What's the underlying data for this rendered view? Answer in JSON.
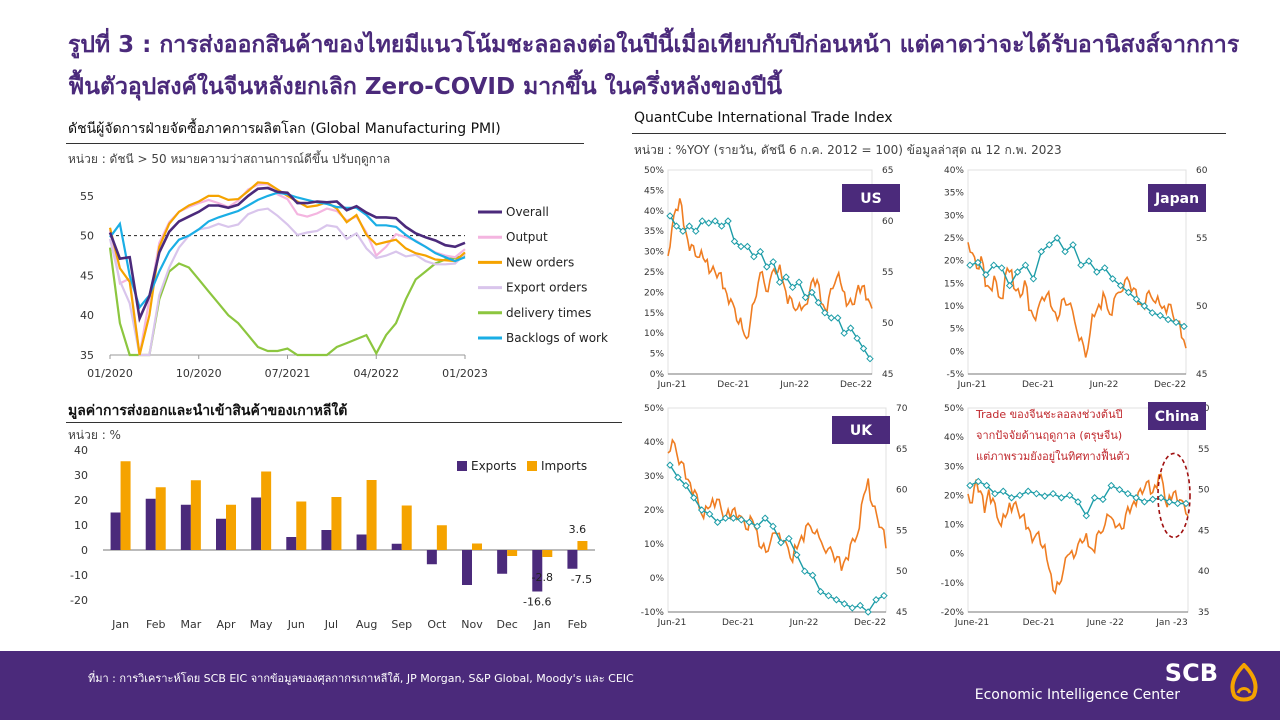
{
  "title": "รูปที่ 3 : การส่งออกสินค้าของไทยมีแนวโน้มชะลอลงต่อในปีนี้เมื่อเทียบกับปีก่อนหน้า แต่คาดว่าจะได้รับอานิสงส์จากการฟื้นตัวอุปสงค์ในจีนหลังยกเลิก Zero-COVID มากขึ้น ในครึ่งหลังของปีนี้",
  "footer": {
    "source": "ที่มา : การวิเคราะห์โดย SCB EIC จากข้อมูลของศุลกากรเกาหลีใต้, JP Morgan, S&P Global, Moody's และ CEIC",
    "brand": "SCB",
    "brand_sub": "Economic Intelligence Center"
  },
  "chart_data": [
    {
      "type": "line",
      "title": "ดัชนีผู้จัดการฝ่ายจัดซื้อภาคการผลิตโลก (Global Manufacturing PMI)",
      "subtitle": "หน่วย : ดัชนี > 50 หมายความว่าสถานการณ์ดีขึ้น ปรับฤดูกาล",
      "x_ticks": [
        "01/2020",
        "10/2020",
        "07/2021",
        "04/2022",
        "01/2023"
      ],
      "y_ticks": [
        35,
        40,
        45,
        50,
        55
      ],
      "ylim": [
        35,
        57
      ],
      "reference_line": 50,
      "x": [
        "01/2020",
        "02/2020",
        "03/2020",
        "04/2020",
        "05/2020",
        "06/2020",
        "07/2020",
        "08/2020",
        "09/2020",
        "10/2020",
        "11/2020",
        "12/2020",
        "01/2021",
        "02/2021",
        "03/2021",
        "04/2021",
        "05/2021",
        "06/2021",
        "07/2021",
        "08/2021",
        "09/2021",
        "10/2021",
        "11/2021",
        "12/2021",
        "01/2022",
        "02/2022",
        "03/2022",
        "04/2022",
        "05/2022",
        "06/2022",
        "07/2022",
        "08/2022",
        "09/2022",
        "10/2022",
        "11/2022",
        "12/2022",
        "01/2023"
      ],
      "series": [
        {
          "name": "Overall",
          "color": "#4b2a7b",
          "values": [
            50.4,
            47.1,
            47.3,
            39.6,
            42.4,
            47.9,
            50.5,
            51.8,
            52.4,
            53.0,
            53.8,
            53.8,
            53.5,
            53.9,
            55.0,
            55.9,
            56.0,
            55.5,
            55.4,
            54.1,
            54.1,
            54.3,
            54.2,
            54.3,
            53.2,
            53.7,
            52.9,
            52.3,
            52.3,
            52.2,
            51.1,
            50.3,
            49.8,
            49.4,
            48.8,
            48.6,
            49.1
          ]
        },
        {
          "name": "Output",
          "color": "#f4b5e0",
          "values": [
            50.7,
            44.0,
            44.6,
            34.8,
            42.0,
            49.1,
            51.7,
            53.0,
            53.6,
            54.1,
            54.5,
            54.1,
            53.6,
            54.4,
            55.8,
            56.4,
            56.5,
            55.2,
            54.6,
            52.7,
            52.4,
            52.8,
            53.4,
            53.1,
            51.9,
            52.4,
            50.4,
            47.5,
            48.6,
            50.2,
            49.8,
            49.4,
            48.6,
            47.9,
            47.5,
            47.3,
            48.3
          ]
        },
        {
          "name": "New orders",
          "color": "#f5a300",
          "values": [
            51.0,
            45.9,
            44.2,
            33.0,
            40.0,
            48.6,
            51.5,
            53.0,
            53.8,
            54.3,
            55.0,
            55.0,
            54.5,
            54.6,
            55.6,
            56.7,
            56.6,
            55.8,
            55.0,
            54.3,
            53.6,
            53.8,
            54.2,
            53.4,
            51.7,
            52.6,
            50.1,
            48.9,
            49.2,
            49.5,
            48.4,
            47.8,
            47.5,
            47.0,
            46.9,
            46.8,
            47.9
          ]
        },
        {
          "name": "Export orders",
          "color": "#d9c5ec",
          "values": [
            49.6,
            44.3,
            41.5,
            28.0,
            34.0,
            42.5,
            46.0,
            48.5,
            50.0,
            50.8,
            51.0,
            51.5,
            51.1,
            51.4,
            52.7,
            53.2,
            53.4,
            52.5,
            51.4,
            50.1,
            50.4,
            50.6,
            51.3,
            51.1,
            49.6,
            50.3,
            48.4,
            47.2,
            47.5,
            48.0,
            47.4,
            47.6,
            46.8,
            46.4,
            46.4,
            46.5,
            47.7
          ]
        },
        {
          "name": "delivery times",
          "color": "#8cc63f",
          "values": [
            48.5,
            39.0,
            32.0,
            25.0,
            35.0,
            42.0,
            45.5,
            46.5,
            46.0,
            44.5,
            43.0,
            41.5,
            40.0,
            39.0,
            37.5,
            36.0,
            35.5,
            35.5,
            35.8,
            34.5,
            34.2,
            34.3,
            34.5,
            36.0,
            36.5,
            37.0,
            37.5,
            35.2,
            37.5,
            39.0,
            42.0,
            44.5,
            45.5,
            46.5,
            47.0,
            47.2,
            47.5
          ]
        },
        {
          "name": "Backlogs of work",
          "color": "#1aaee5",
          "values": [
            49.8,
            51.5,
            45.0,
            41.0,
            42.5,
            45.5,
            48.0,
            49.5,
            50.0,
            50.8,
            51.8,
            52.3,
            52.7,
            53.1,
            53.8,
            54.5,
            55.0,
            55.4,
            55.2,
            54.8,
            54.5,
            54.2,
            54.0,
            53.6,
            53.5,
            53.5,
            52.6,
            51.3,
            51.3,
            51.1,
            50.1,
            49.3,
            48.6,
            47.8,
            47.3,
            46.8,
            47.3
          ]
        }
      ]
    },
    {
      "type": "bar",
      "title": "มูลค่าการส่งออกและนำเข้าสินค้าของเกาหลีใต้",
      "subtitle": "หน่วย : %",
      "categories": [
        "Jan",
        "Feb",
        "Mar",
        "Apr",
        "May",
        "Jun",
        "Jul",
        "Aug",
        "Sep",
        "Oct",
        "Nov",
        "Dec",
        "Jan",
        "Feb"
      ],
      "y_ticks": [
        -20,
        -10,
        0,
        10,
        20,
        30,
        40
      ],
      "ylim": [
        -20,
        40
      ],
      "series": [
        {
          "name": "Exports",
          "color": "#4b2a7b",
          "values": [
            15.0,
            20.5,
            18.1,
            12.5,
            21.0,
            5.2,
            8.0,
            6.2,
            2.5,
            -5.7,
            -14.0,
            -9.5,
            -16.6,
            -7.5
          ]
        },
        {
          "name": "Imports",
          "color": "#f5a300",
          "values": [
            35.5,
            25.1,
            27.9,
            18.1,
            31.4,
            19.4,
            21.2,
            28.0,
            17.8,
            9.9,
            2.6,
            -2.4,
            -2.8,
            3.6
          ]
        }
      ],
      "data_labels": [
        "-2.8",
        "-16.6",
        "-7.5",
        "3.6"
      ]
    },
    {
      "type": "line",
      "title": "QuantCube International Trade Index",
      "subtitle": "หน่วย : %YOY (รายวัน, ดัชนี 6 ก.ค. 2012 = 100) ข้อมูลล่าสุด ณ 12 ก.พ. 2023",
      "panels": [
        {
          "name": "US",
          "x_ticks": [
            "Jun-21",
            "Dec-21",
            "Jun-22",
            "Dec-22"
          ],
          "y_left_ticks": [
            "0%",
            "5%",
            "10%",
            "15%",
            "20%",
            "25%",
            "30%",
            "35%",
            "40%",
            "45%",
            "50%"
          ],
          "y_right_ticks": [
            "45",
            "50",
            "55",
            "60",
            "65"
          ],
          "ylim_left": [
            0,
            50
          ],
          "ylim_right": [
            45,
            65
          ],
          "daily_series": {
            "color": "#ef7d22",
            "values": [
              30,
              36,
              40,
              42,
              37,
              33,
              31,
              30,
              29,
              28,
              27,
              26,
              25,
              24,
              22,
              20,
              18,
              15,
              13,
              11,
              8,
              14,
              18,
              22,
              24,
              21,
              23,
              25,
              26,
              24,
              20,
              18,
              17,
              16,
              15,
              18,
              20,
              23,
              22,
              18,
              16,
              18,
              22,
              24,
              22,
              19,
              18,
              17,
              19,
              21,
              22,
              18,
              15
            ]
          },
          "index_series": {
            "color": "#1d9da8",
            "values": [
              60.5,
              59.5,
              59.0,
              59.5,
              59.0,
              60.0,
              59.8,
              60.0,
              59.5,
              60.0,
              58.0,
              57.5,
              57.5,
              56.5,
              57.0,
              55.5,
              56.0,
              54.0,
              54.5,
              53.5,
              54.0,
              52.5,
              53.0,
              52.0,
              51.0,
              50.5,
              50.5,
              49.0,
              49.5,
              48.5,
              47.5,
              46.5
            ]
          }
        },
        {
          "name": "Japan",
          "x_ticks": [
            "Jun-21",
            "Dec-21",
            "Jun-22",
            "Dec-22"
          ],
          "y_left_ticks": [
            "-5%",
            "0%",
            "5%",
            "10%",
            "15%",
            "20%",
            "25%",
            "30%",
            "35%",
            "40%"
          ],
          "y_right_ticks": [
            "45",
            "50",
            "55",
            "60"
          ],
          "ylim_left": [
            -5,
            40
          ],
          "ylim_right": [
            45,
            60
          ],
          "daily_series": {
            "color": "#ef7d22",
            "values": [
              25,
              22,
              18,
              20,
              15,
              14,
              16,
              13,
              12,
              18,
              17,
              14,
              12,
              15,
              10,
              8,
              9,
              11,
              13,
              10,
              8,
              9,
              12,
              10,
              8,
              5,
              3,
              -2,
              5,
              8,
              10,
              12,
              10,
              8,
              12,
              14,
              16,
              15,
              13,
              11,
              10,
              12,
              13,
              11,
              10,
              9,
              11,
              8,
              6,
              4,
              1
            ]
          },
          "index_series": {
            "color": "#1d9da8",
            "values": [
              53.0,
              53.2,
              52.3,
              53.0,
              52.8,
              51.5,
              52.5,
              53.0,
              52.0,
              54.0,
              54.5,
              55.0,
              54.0,
              54.5,
              53.0,
              53.3,
              52.5,
              52.8,
              52.0,
              51.5,
              51.0,
              50.5,
              50.0,
              49.5,
              49.3,
              49.0,
              48.8,
              48.5
            ]
          }
        },
        {
          "name": "UK",
          "x_ticks": [
            "Jun-21",
            "Dec-21",
            "Jun-22",
            "Dec-22"
          ],
          "y_left_ticks": [
            "-10%",
            "0%",
            "10%",
            "20%",
            "30%",
            "40%",
            "50%"
          ],
          "y_right_ticks": [
            "45",
            "50",
            "55",
            "60",
            "65",
            "70"
          ],
          "ylim_left": [
            -10,
            50
          ],
          "ylim_right": [
            45,
            70
          ],
          "daily_series": {
            "color": "#ef7d22",
            "values": [
              38,
              41,
              36,
              33,
              30,
              28,
              25,
              22,
              18,
              20,
              22,
              24,
              20,
              17,
              19,
              21,
              18,
              16,
              15,
              17,
              13,
              10,
              8,
              10,
              12,
              14,
              11,
              8,
              6,
              9,
              12,
              14,
              16,
              13,
              11,
              10,
              9,
              7,
              5,
              3,
              6,
              9,
              12,
              15,
              24,
              28,
              22,
              18,
              14,
              10
            ]
          },
          "index_series": {
            "color": "#1d9da8",
            "values": [
              63.0,
              61.5,
              60.5,
              59.0,
              57.5,
              57.0,
              56.0,
              56.5,
              56.5,
              56.3,
              56.0,
              55.5,
              56.5,
              55.5,
              53.5,
              54.0,
              52.0,
              50.0,
              49.5,
              47.5,
              47.0,
              46.5,
              46.0,
              45.5,
              45.8,
              45.0,
              46.5,
              47.0
            ]
          }
        },
        {
          "name": "China",
          "x_ticks": [
            "June-21",
            "Dec-21",
            "June -22",
            "Jan -23"
          ],
          "y_left_ticks": [
            "-20%",
            "-10%",
            "0%",
            "10%",
            "20%",
            "30%",
            "40%",
            "50%"
          ],
          "y_right_ticks": [
            "35",
            "40",
            "45",
            "50",
            "55",
            "60"
          ],
          "ylim_left": [
            -20,
            50
          ],
          "ylim_right": [
            35,
            60
          ],
          "annotation": "Trade ของจีนชะลอลงช่วงต้นปี จากปัจจัยด้านฤดูกาล (ตรุษจีน) แต่ภาพรวมยังอยู่ในทิศทางฟื้นตัว",
          "daily_series": {
            "color": "#ef7d22",
            "values": [
              22,
              18,
              25,
              20,
              15,
              22,
              18,
              14,
              10,
              12,
              16,
              18,
              15,
              12,
              10,
              8,
              5,
              6,
              3,
              -2,
              -8,
              -12,
              -10,
              -6,
              -2,
              2,
              0,
              4,
              6,
              3,
              1,
              5,
              8,
              10,
              12,
              13,
              10,
              8,
              12,
              15,
              18,
              20,
              22,
              25,
              20,
              22,
              28,
              24,
              15,
              20,
              22,
              18,
              16,
              14
            ]
          },
          "index_series": {
            "color": "#1d9da8",
            "values": [
              50.5,
              51.0,
              50.5,
              49.5,
              49.8,
              49.0,
              49.3,
              49.8,
              49.5,
              49.2,
              49.5,
              49.0,
              49.3,
              48.5,
              46.8,
              49.0,
              48.8,
              50.5,
              50.0,
              49.5,
              49.0,
              48.5,
              48.8,
              49.0,
              48.5,
              48.3,
              48.3
            ]
          }
        }
      ]
    }
  ]
}
